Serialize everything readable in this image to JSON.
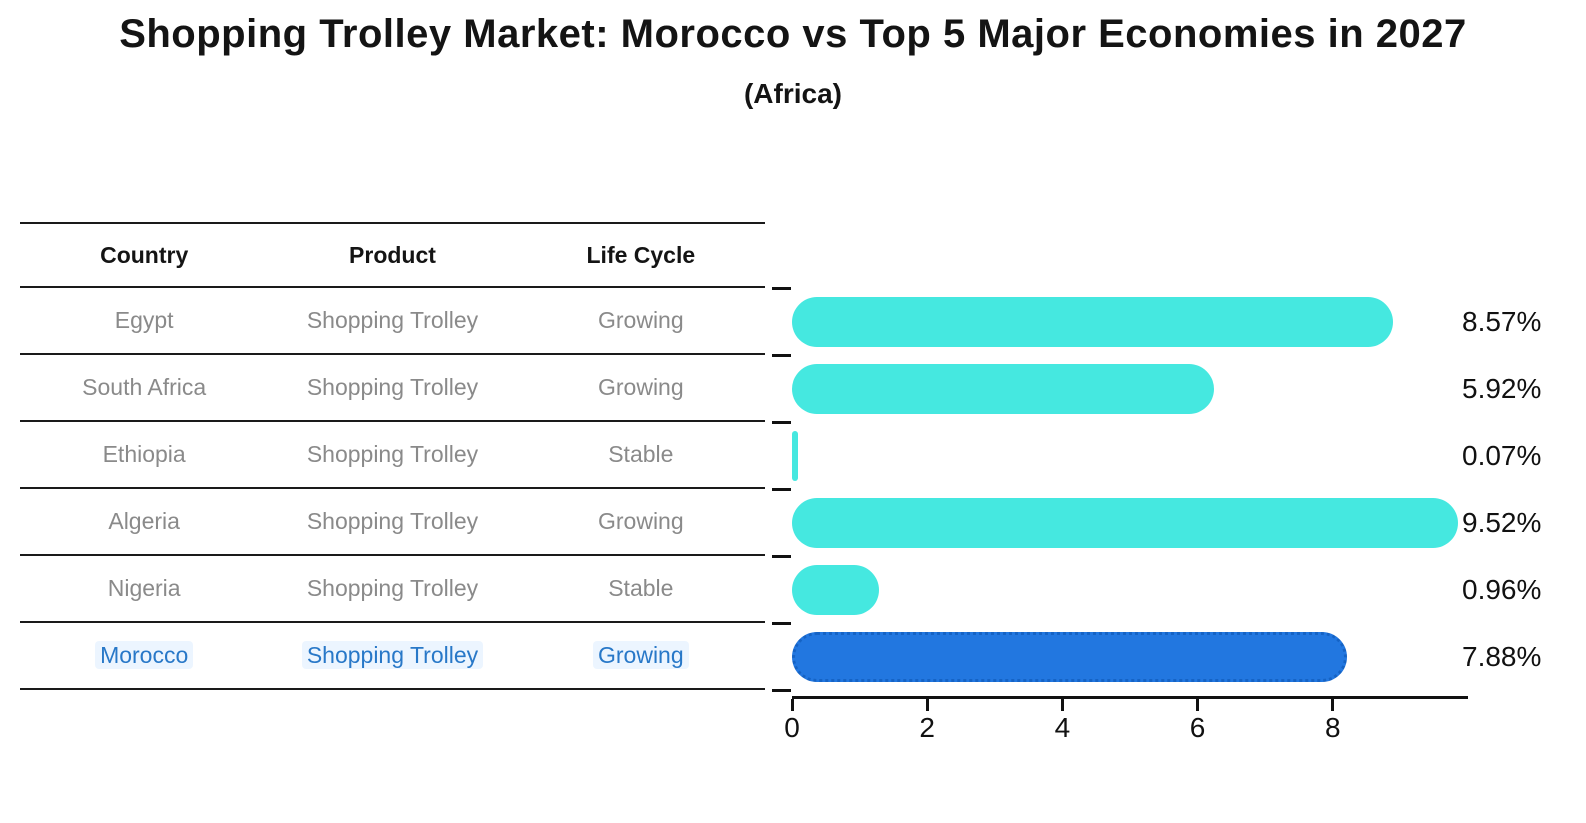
{
  "title": "Shopping Trolley Market: Morocco vs Top 5 Major Economies in 2027",
  "subtitle": "(Africa)",
  "table": {
    "headers": [
      "Country",
      "Product",
      "Life Cycle"
    ],
    "rows": [
      {
        "country": "Egypt",
        "product": "Shopping Trolley",
        "life_cycle": "Growing",
        "highlighted": false
      },
      {
        "country": "South Africa",
        "product": "Shopping Trolley",
        "life_cycle": "Growing",
        "highlighted": false
      },
      {
        "country": "Ethiopia",
        "product": "Shopping Trolley",
        "life_cycle": "Stable",
        "highlighted": false
      },
      {
        "country": "Algeria",
        "product": "Shopping Trolley",
        "life_cycle": "Growing",
        "highlighted": false
      },
      {
        "country": "Nigeria",
        "product": "Shopping Trolley",
        "life_cycle": "Stable",
        "highlighted": false
      },
      {
        "country": "Morocco",
        "product": "Shopping Trolley",
        "life_cycle": "Growing",
        "highlighted": true
      }
    ]
  },
  "colors": {
    "bar_default": "#45E8E0",
    "bar_highlight": "#2277E0",
    "highlight_border": "#1563C5",
    "highlight_text": "#2878C8",
    "table_text": "#8a8a8a",
    "heading_text": "#141414",
    "axis": "#111111"
  },
  "chart_data": {
    "type": "bar",
    "orientation": "horizontal",
    "title": "Shopping Trolley Market: Morocco vs Top 5 Major Economies in 2027 (Africa)",
    "categories": [
      "Egypt",
      "South Africa",
      "Ethiopia",
      "Algeria",
      "Nigeria",
      "Morocco"
    ],
    "values": [
      8.57,
      5.92,
      0.07,
      9.52,
      0.96,
      7.88
    ],
    "value_labels": [
      "8.57%",
      "5.92%",
      "0.07%",
      "9.52%",
      "0.96%",
      "7.88%"
    ],
    "highlight_index": 5,
    "xlabel": "",
    "ylabel": "",
    "xlim": [
      0,
      10
    ],
    "xticks": [
      0,
      2,
      4,
      6,
      8
    ],
    "grid": false,
    "legend": false
  }
}
